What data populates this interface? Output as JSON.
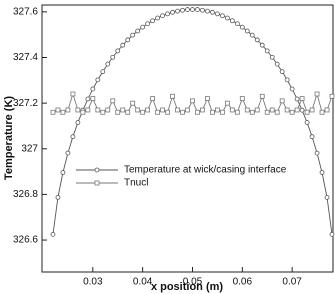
{
  "chart_data": {
    "type": "line",
    "xlabel": "x position (m)",
    "ylabel": "Temperature (K)",
    "x": [
      0.022,
      0.023,
      0.024,
      0.025,
      0.026,
      0.027,
      0.028,
      0.029,
      0.03,
      0.031,
      0.032,
      0.033,
      0.034,
      0.035,
      0.036,
      0.037,
      0.038,
      0.039,
      0.04,
      0.041,
      0.042,
      0.043,
      0.044,
      0.045,
      0.046,
      0.047,
      0.048,
      0.049,
      0.05,
      0.051,
      0.052,
      0.053,
      0.054,
      0.055,
      0.056,
      0.057,
      0.058,
      0.059,
      0.06,
      0.061,
      0.062,
      0.063,
      0.064,
      0.065,
      0.066,
      0.067,
      0.068,
      0.069,
      0.07,
      0.071,
      0.072,
      0.073,
      0.074,
      0.075,
      0.076,
      0.077,
      0.078
    ],
    "series": [
      {
        "name": "Temperature at wick/casing interface",
        "color": "#555555",
        "marker": "circle",
        "values": [
          326.625,
          326.787,
          326.896,
          326.981,
          327.053,
          327.115,
          327.169,
          327.218,
          327.262,
          327.302,
          327.338,
          327.371,
          327.401,
          327.429,
          327.454,
          327.477,
          327.498,
          327.516,
          327.533,
          327.548,
          327.561,
          327.573,
          327.583,
          327.591,
          327.598,
          327.603,
          327.607,
          327.61,
          327.61,
          327.61,
          327.607,
          327.603,
          327.598,
          327.591,
          327.583,
          327.573,
          327.561,
          327.548,
          327.533,
          327.516,
          327.498,
          327.477,
          327.454,
          327.429,
          327.401,
          327.371,
          327.338,
          327.302,
          327.262,
          327.218,
          327.169,
          327.115,
          327.053,
          326.981,
          326.896,
          326.787,
          326.625
        ]
      },
      {
        "name": "Tnucl",
        "color": "#777777",
        "marker": "square",
        "values": [
          327.16,
          327.17,
          327.16,
          327.17,
          327.24,
          327.17,
          327.16,
          327.17,
          327.22,
          327.17,
          327.16,
          327.17,
          327.21,
          327.16,
          327.17,
          327.16,
          327.2,
          327.17,
          327.16,
          327.17,
          327.22,
          327.16,
          327.17,
          327.16,
          327.23,
          327.17,
          327.16,
          327.17,
          327.21,
          327.16,
          327.17,
          327.22,
          327.16,
          327.17,
          327.16,
          327.2,
          327.17,
          327.16,
          327.22,
          327.17,
          327.16,
          327.17,
          327.23,
          327.16,
          327.17,
          327.16,
          327.21,
          327.17,
          327.16,
          327.17,
          327.22,
          327.16,
          327.17,
          327.24,
          327.16,
          327.17,
          327.23
        ]
      }
    ],
    "xlim": [
      0.0198,
      0.0782
    ],
    "xticks": [
      0.03,
      0.04,
      0.05,
      0.06,
      0.07
    ],
    "ylim": [
      326.46,
      327.63
    ],
    "yticks": [
      326.6,
      326.8,
      327,
      327.2,
      327.4,
      327.6
    ]
  }
}
